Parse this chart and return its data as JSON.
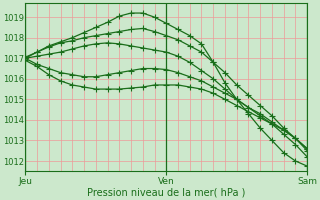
{
  "bg_color": "#cce8cc",
  "grid_color": "#ee9999",
  "line_color": "#1a6e1a",
  "title": "Pression niveau de la mer( hPa )",
  "xlabel_jeu": "Jeu",
  "xlabel_ven": "Ven",
  "xlabel_sam": "Sam",
  "ylim": [
    1011.5,
    1019.7
  ],
  "yticks": [
    1012,
    1013,
    1014,
    1015,
    1016,
    1017,
    1018,
    1019
  ],
  "series": [
    [
      1017.0,
      1017.3,
      1017.6,
      1017.8,
      1018.0,
      1018.25,
      1018.5,
      1018.75,
      1019.05,
      1019.2,
      1019.2,
      1019.0,
      1018.7,
      1018.4,
      1018.1,
      1017.7,
      1016.8,
      1015.8,
      1015.0,
      1014.3,
      1013.6,
      1013.0,
      1012.4,
      1012.0,
      1011.75
    ],
    [
      1017.05,
      1017.3,
      1017.55,
      1017.75,
      1017.85,
      1018.0,
      1018.1,
      1018.2,
      1018.3,
      1018.4,
      1018.45,
      1018.3,
      1018.1,
      1017.9,
      1017.6,
      1017.3,
      1016.8,
      1016.3,
      1015.7,
      1015.2,
      1014.7,
      1014.2,
      1013.6,
      1013.1,
      1012.5
    ],
    [
      1017.0,
      1017.1,
      1017.2,
      1017.3,
      1017.45,
      1017.6,
      1017.7,
      1017.75,
      1017.7,
      1017.6,
      1017.5,
      1017.4,
      1017.3,
      1017.1,
      1016.8,
      1016.4,
      1016.0,
      1015.5,
      1015.0,
      1014.6,
      1014.2,
      1013.8,
      1013.3,
      1012.8,
      1012.2
    ],
    [
      1017.0,
      1016.7,
      1016.5,
      1016.3,
      1016.2,
      1016.1,
      1016.1,
      1016.2,
      1016.3,
      1016.4,
      1016.5,
      1016.5,
      1016.45,
      1016.3,
      1016.1,
      1015.9,
      1015.6,
      1015.3,
      1015.0,
      1014.6,
      1014.3,
      1013.9,
      1013.5,
      1013.1,
      1012.6
    ],
    [
      1016.9,
      1016.6,
      1016.2,
      1015.9,
      1015.7,
      1015.6,
      1015.5,
      1015.5,
      1015.5,
      1015.55,
      1015.6,
      1015.7,
      1015.7,
      1015.7,
      1015.6,
      1015.5,
      1015.3,
      1015.0,
      1014.7,
      1014.4,
      1014.1,
      1013.8,
      1013.5,
      1013.1,
      1012.6
    ]
  ],
  "n_points": 25,
  "day_positions": [
    0,
    12,
    24
  ],
  "n_vgrid": 24,
  "figsize": [
    3.2,
    2.0
  ],
  "dpi": 100
}
